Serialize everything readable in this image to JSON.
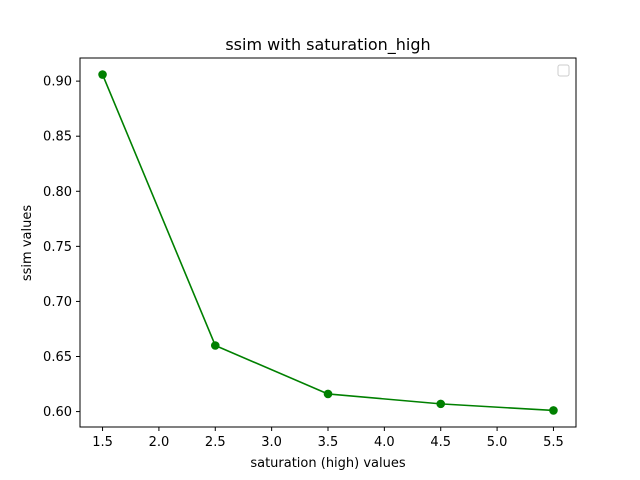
{
  "chart_data": {
    "type": "line",
    "title": "ssim with saturation_high",
    "xlabel": "saturation (high) values",
    "ylabel": "ssim values",
    "x": [
      1.5,
      2.5,
      3.5,
      4.5,
      5.5
    ],
    "series": [
      {
        "values": [
          0.906,
          0.66,
          0.616,
          0.607,
          0.601
        ],
        "color": "#008000",
        "marker": "circle"
      }
    ],
    "xlim": [
      1.3,
      5.7
    ],
    "ylim": [
      0.586,
      0.921
    ],
    "xticks": [
      1.5,
      2.0,
      2.5,
      3.0,
      3.5,
      4.0,
      4.5,
      5.0,
      5.5
    ],
    "xtick_labels": [
      "1.5",
      "2.0",
      "2.5",
      "3.0",
      "3.5",
      "4.0",
      "4.5",
      "5.0",
      "5.5"
    ],
    "yticks": [
      0.6,
      0.65,
      0.7,
      0.75,
      0.8,
      0.85,
      0.9
    ],
    "ytick_labels": [
      "0.60",
      "0.65",
      "0.70",
      "0.75",
      "0.80",
      "0.85",
      "0.90"
    ],
    "grid": false,
    "legend": {
      "placement": "top-right",
      "entries": []
    }
  }
}
